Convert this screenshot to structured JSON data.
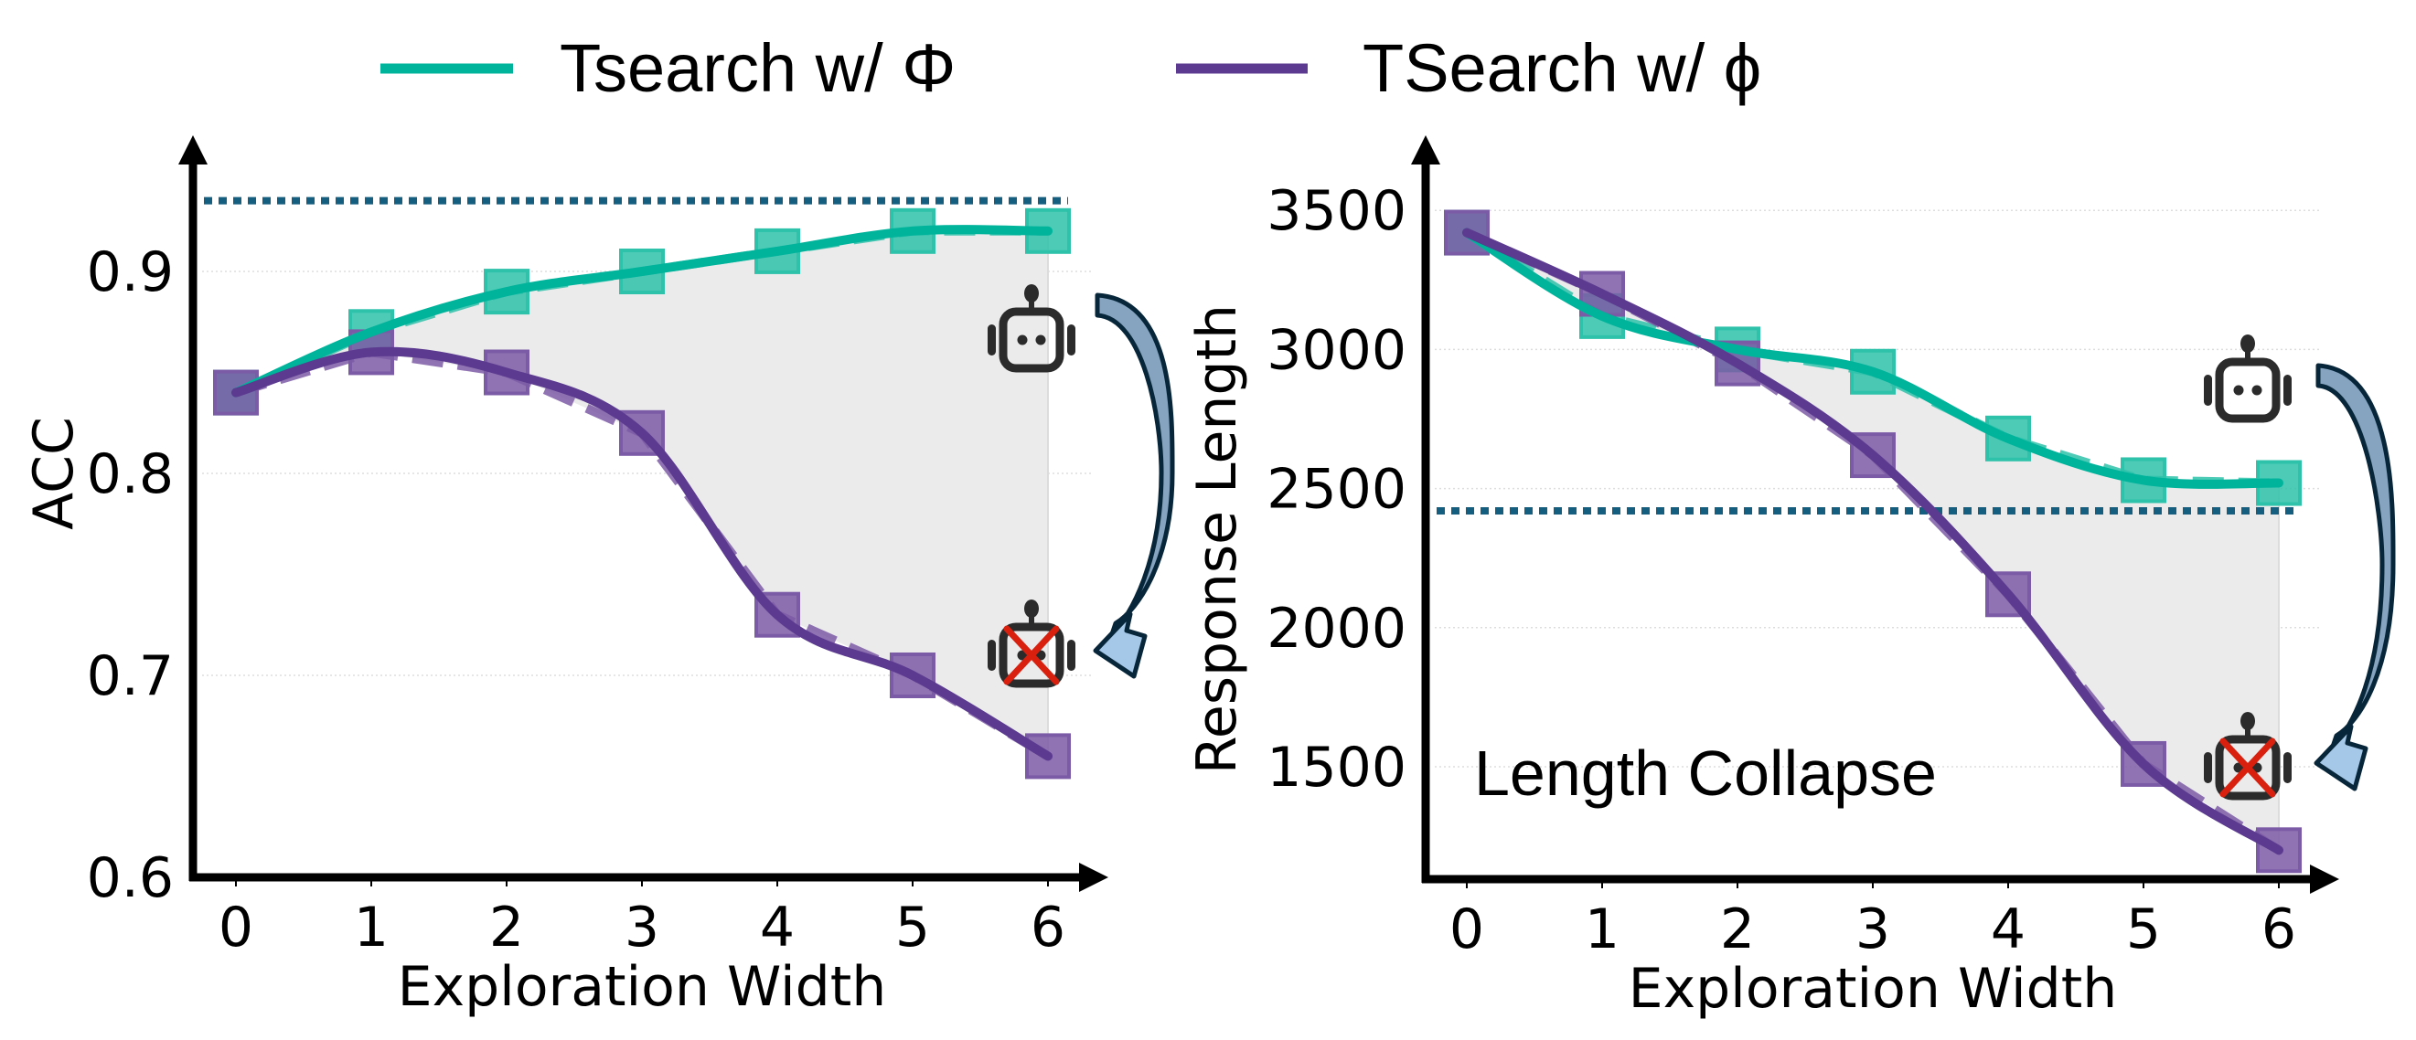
{
  "legend": [
    {
      "label": "Tsearch w/ Φ",
      "color": "#00b39b"
    },
    {
      "label": "TSearch w/ ϕ",
      "color": "#5b3a8f"
    }
  ],
  "colors": {
    "teal": "#00b39b",
    "teal_marker": "#2ec2aa",
    "purple": "#5b3a8f",
    "purple_marker": "#7c5ba6",
    "reference": "#155e80",
    "fill": "#ebebeb",
    "arrow_fill_top": "#86a3bf",
    "arrow_fill_bottom": "#a6c8e8",
    "arrow_stroke": "#08263a",
    "robot": "#2b2b2b",
    "cross": "#d9200f"
  },
  "chart_data": [
    {
      "type": "line",
      "title": "",
      "xlabel": "Exploration Width",
      "ylabel": "ACC",
      "x": [
        0,
        1,
        2,
        3,
        4,
        5,
        6
      ],
      "xticks": [
        "0",
        "1",
        "2",
        "3",
        "4",
        "5",
        "6"
      ],
      "yticks": [
        "0.6",
        "0.7",
        "0.8",
        "0.9"
      ],
      "ytick_values": [
        0.6,
        0.7,
        0.8,
        0.9
      ],
      "ylim": [
        0.6,
        0.967
      ],
      "xlim": [
        -0.5,
        6.4
      ],
      "grid": "horizontal dotted",
      "reference_line": 0.935,
      "series": [
        {
          "name": "Tsearch w/ Φ",
          "values": [
            0.84,
            0.87,
            0.89,
            0.9,
            0.91,
            0.92,
            0.92
          ]
        },
        {
          "name": "TSearch w/ ϕ",
          "values": [
            0.84,
            0.86,
            0.85,
            0.82,
            0.73,
            0.7,
            0.66
          ]
        }
      ],
      "annotation": "",
      "icons": [
        "robot-icon",
        "robot-crossed-icon",
        "curved-arrow-icon"
      ]
    },
    {
      "type": "line",
      "title": "",
      "xlabel": "Exploration Width",
      "ylabel": "Response Length",
      "x": [
        0,
        1,
        2,
        3,
        4,
        5,
        6
      ],
      "xticks": [
        "0",
        "1",
        "2",
        "3",
        "4",
        "5",
        "6"
      ],
      "yticks": [
        "1500",
        "2000",
        "2500",
        "3000",
        "3500"
      ],
      "ytick_values": [
        1500,
        2000,
        2500,
        3000,
        3500
      ],
      "ylim": [
        1095,
        3770
      ],
      "xlim": [
        -0.3,
        6.4
      ],
      "grid": "horizontal dotted",
      "reference_line": 2420,
      "series": [
        {
          "name": "Tsearch w/ Φ",
          "values": [
            3420,
            3120,
            3000,
            2920,
            2680,
            2530,
            2520
          ]
        },
        {
          "name": "TSearch w/ ϕ",
          "values": [
            3420,
            3200,
            2950,
            2620,
            2120,
            1510,
            1200
          ]
        }
      ],
      "annotation": "Length Collapse",
      "icons": [
        "robot-icon",
        "robot-crossed-icon",
        "curved-arrow-icon"
      ]
    }
  ]
}
